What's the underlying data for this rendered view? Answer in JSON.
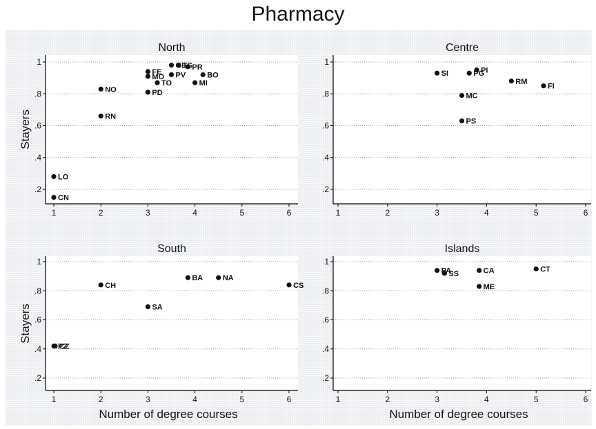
{
  "title": "Pharmacy",
  "chart_data": {
    "type": "scatter",
    "title": "Pharmacy",
    "xlabel": "Number of degree courses",
    "ylabel": "Stayers",
    "xlim": [
      0.85,
      6.1
    ],
    "ylim": [
      0.13,
      1.04
    ],
    "xticks": [
      1,
      2,
      3,
      4,
      5,
      6
    ],
    "yticks": [
      0.2,
      0.4,
      0.6,
      0.8,
      1
    ],
    "ytick_labels": [
      ".2",
      ".4",
      ".6",
      ".8",
      "1"
    ],
    "grid": true,
    "panels": [
      {
        "name": "North",
        "points": [
          {
            "label": "FE",
            "x": 3,
            "y": 0.94
          },
          {
            "label": "MO",
            "x": 3,
            "y": 0.91
          },
          {
            "label": "PD",
            "x": 3,
            "y": 0.81
          },
          {
            "label": "TO",
            "x": 3.2,
            "y": 0.87
          },
          {
            "label": "PV",
            "x": 3.5,
            "y": 0.92
          },
          {
            "label": "GE",
            "x": 3.5,
            "y": 0.98
          },
          {
            "label": "TS",
            "x": 3.65,
            "y": 0.98
          },
          {
            "label": "PR",
            "x": 3.85,
            "y": 0.97
          },
          {
            "label": "MI",
            "x": 4,
            "y": 0.87
          },
          {
            "label": "BO",
            "x": 4.17,
            "y": 0.92
          },
          {
            "label": "NO",
            "x": 2,
            "y": 0.83
          },
          {
            "label": "RN",
            "x": 2,
            "y": 0.66
          },
          {
            "label": "LO",
            "x": 1,
            "y": 0.28
          },
          {
            "label": "CN",
            "x": 1,
            "y": 0.15
          }
        ]
      },
      {
        "name": "Centre",
        "points": [
          {
            "label": "SI",
            "x": 3,
            "y": 0.93
          },
          {
            "label": "PG",
            "x": 3.65,
            "y": 0.93
          },
          {
            "label": "PI",
            "x": 3.8,
            "y": 0.95
          },
          {
            "label": "RM",
            "x": 4.5,
            "y": 0.88
          },
          {
            "label": "FI",
            "x": 5.15,
            "y": 0.85
          },
          {
            "label": "MC",
            "x": 3.5,
            "y": 0.79
          },
          {
            "label": "PS",
            "x": 3.5,
            "y": 0.63
          }
        ]
      },
      {
        "name": "South",
        "points": [
          {
            "label": "CH",
            "x": 2,
            "y": 0.84
          },
          {
            "label": "BA",
            "x": 3.85,
            "y": 0.89
          },
          {
            "label": "NA",
            "x": 4.5,
            "y": 0.89
          },
          {
            "label": "CS",
            "x": 6,
            "y": 0.84
          },
          {
            "label": "SA",
            "x": 3,
            "y": 0.69
          },
          {
            "label": "PZ",
            "x": 1,
            "y": 0.42
          },
          {
            "label": "CZ",
            "x": 1.03,
            "y": 0.42
          }
        ]
      },
      {
        "name": "Islands",
        "points": [
          {
            "label": "PA",
            "x": 3,
            "y": 0.94
          },
          {
            "label": "SS",
            "x": 3.15,
            "y": 0.92
          },
          {
            "label": "CA",
            "x": 3.85,
            "y": 0.94
          },
          {
            "label": "ME",
            "x": 3.85,
            "y": 0.83
          },
          {
            "label": "CT",
            "x": 5,
            "y": 0.95
          }
        ]
      }
    ]
  }
}
